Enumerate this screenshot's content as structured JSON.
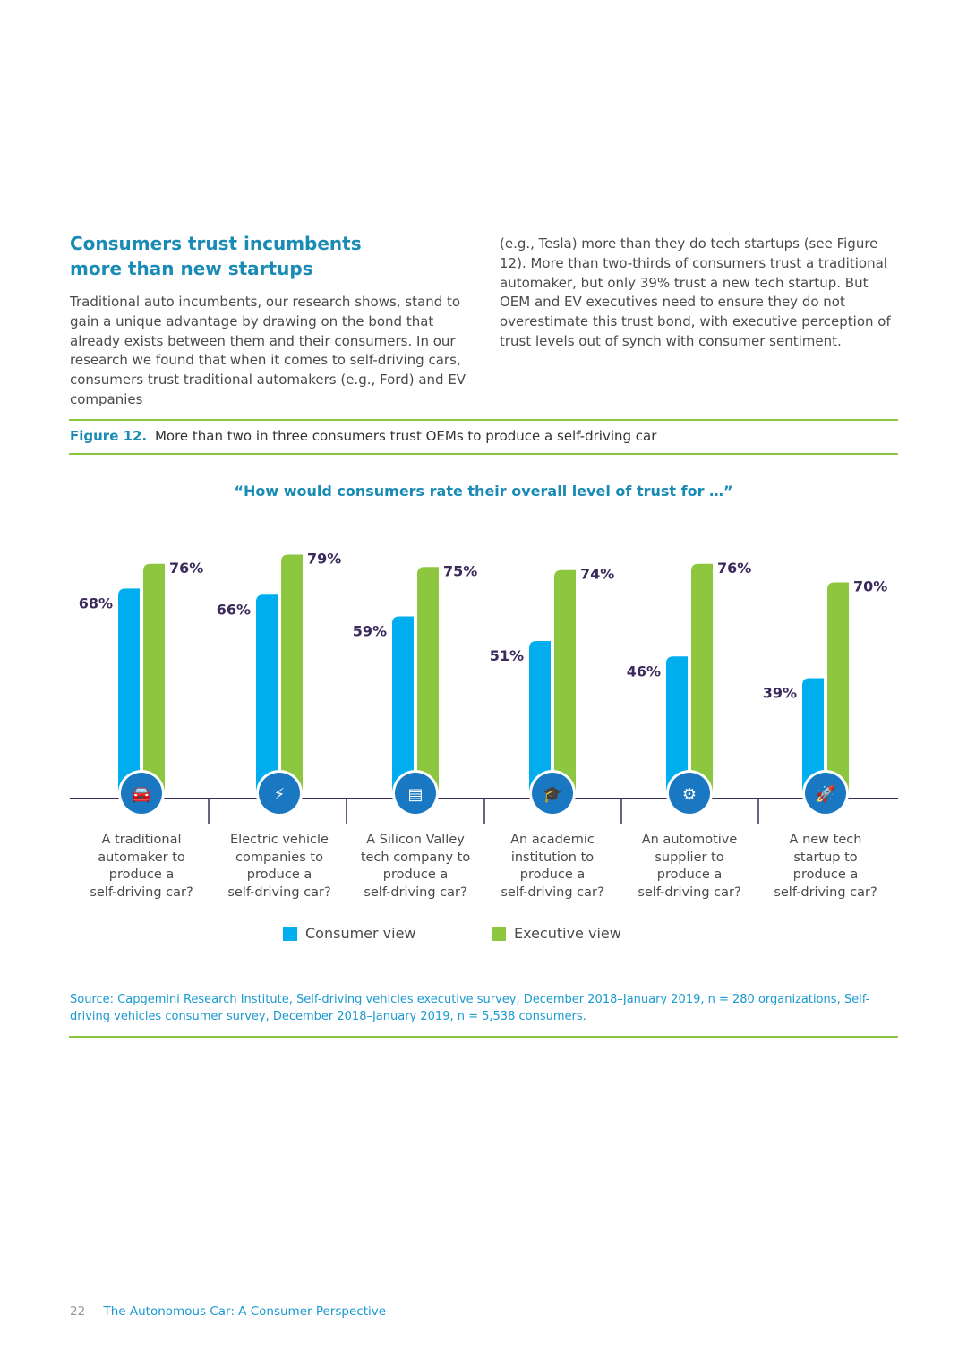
{
  "section": {
    "heading_line1": "Consumers trust incumbents",
    "heading_line2": "more than new startups",
    "left_paragraph": "Traditional auto incumbents, our research shows, stand to gain a unique advantage by drawing on the bond that already exists between them and their consumers. In our research we found that when it comes to self-driving cars, consumers trust traditional automakers (e.g., Ford) and EV companies",
    "right_paragraph": "(e.g., Tesla) more than they do tech startups (see Figure 12). More than two-thirds of consumers trust a traditional automaker, but only 39% trust a new tech startup. But OEM and EV executives need to ensure they do not overestimate this trust bond, with executive perception of trust levels out of synch with consumer sentiment."
  },
  "figure": {
    "number": "Figure 12.",
    "title": "More than two in three consumers trust OEMs to produce a self-driving car",
    "question": "“How would consumers rate their overall level of trust for …”"
  },
  "chart_data": {
    "type": "bar",
    "categories": [
      "A traditional automaker to produce a self-driving car?",
      "Electric vehicle companies to produce a self-driving car?",
      "A Silicon Valley tech company to produce a self-driving car?",
      "An academic institution to produce a self-driving car?",
      "An automotive supplier to produce a self-driving car?",
      "A new tech startup to produce a self-driving car?"
    ],
    "category_lines": [
      [
        "A traditional",
        "automaker to",
        "produce a",
        "self-driving car?"
      ],
      [
        "Electric vehicle",
        "companies to",
        "produce a",
        "self-driving car?"
      ],
      [
        "A Silicon Valley",
        "tech company to",
        "produce a",
        "self-driving car?"
      ],
      [
        "An academic",
        "institution to",
        "produce a",
        "self-driving car?"
      ],
      [
        "An automotive",
        "supplier to",
        "produce a",
        "self-driving car?"
      ],
      [
        "A new tech",
        "startup to",
        "produce a",
        "self-driving car?"
      ]
    ],
    "series": [
      {
        "name": "Consumer view",
        "color": "#00aeef",
        "values": [
          68,
          66,
          59,
          51,
          46,
          39
        ],
        "labels": [
          "68%",
          "66%",
          "59%",
          "51%",
          "46%",
          "39%"
        ]
      },
      {
        "name": "Executive view",
        "color": "#8dc63f",
        "values": [
          76,
          79,
          75,
          74,
          76,
          70
        ],
        "labels": [
          "76%",
          "79%",
          "75%",
          "74%",
          "76%",
          "70%"
        ]
      }
    ],
    "icons": [
      "car-icon",
      "electric-car-icon",
      "server-icon",
      "graduation-cap-icon",
      "car-parts-icon",
      "rocket-icon"
    ],
    "ylim": [
      0,
      100
    ],
    "legend": "bottom-center",
    "grid": false
  },
  "source": "Source: Capgemini Research Institute, Self-driving vehicles executive survey, December 2018–January 2019, n = 280 organizations, Self-driving vehicles consumer survey, December 2018–January 2019, n = 5,538 consumers.",
  "footer": {
    "page_number": "22",
    "title": "The Autonomous Car: A Consumer Perspective"
  }
}
